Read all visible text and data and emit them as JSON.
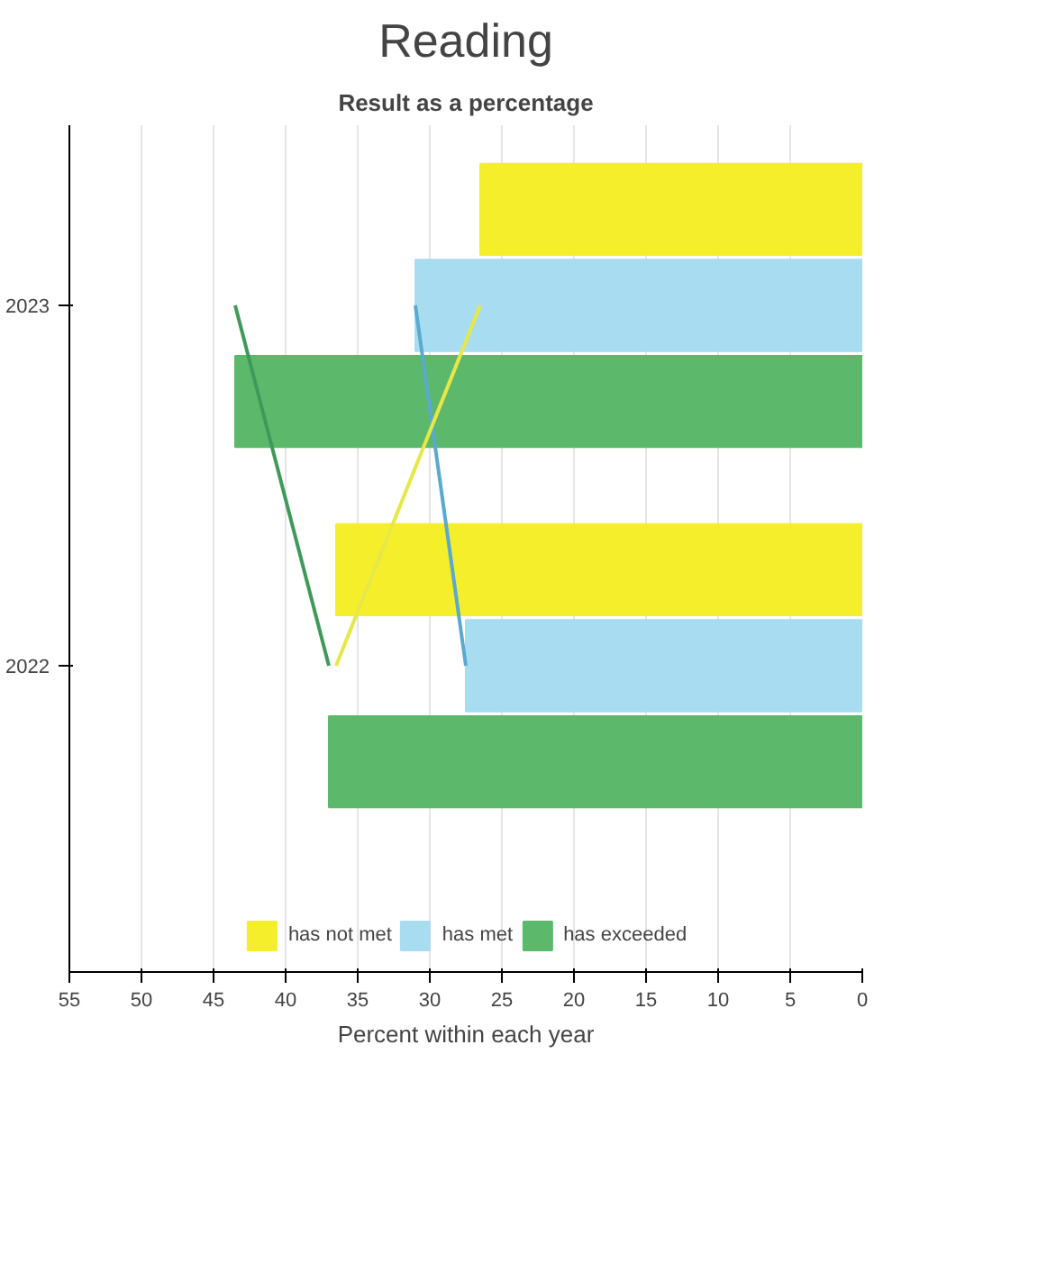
{
  "chart_data": {
    "type": "bar",
    "orientation": "horizontal",
    "title": "Reading",
    "subtitle": "Result as a percentage",
    "xlabel": "Percent within each year",
    "categories": [
      "2023",
      "2022"
    ],
    "series": [
      {
        "name": "has not met",
        "color": "#f5ee2a",
        "values": [
          26.5,
          36.5
        ]
      },
      {
        "name": "has met",
        "color": "#a8dcf0",
        "values": [
          31,
          27.5
        ]
      },
      {
        "name": "has exceeded",
        "color": "#5cb86a",
        "values": [
          43.5,
          37
        ]
      },
      {
        "type": "line",
        "color": "#3f9a5a",
        "values": [
          43.5,
          37
        ]
      },
      {
        "type": "line",
        "color": "#5aa9cf",
        "values": [
          31,
          27.5
        ]
      },
      {
        "type": "line",
        "color": "#e6e84a",
        "values": [
          26.5,
          36.5
        ]
      }
    ],
    "xlim": [
      55,
      0
    ],
    "xticks": [
      0,
      5,
      10,
      15,
      20,
      25,
      30,
      35,
      40,
      45,
      50,
      55
    ],
    "grid": "x",
    "legend": "bottom"
  }
}
